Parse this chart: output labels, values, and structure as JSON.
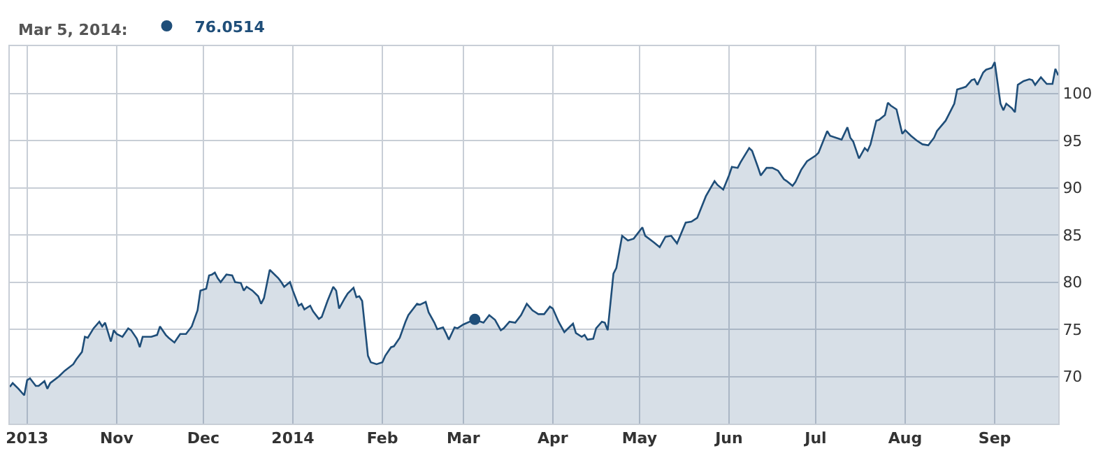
{
  "chart_data": {
    "type": "area",
    "annotations": [
      "Mar 5, 2014:"
    ],
    "legend": "top left",
    "xlim": [
      "2013-09-25",
      "2014-09-23"
    ],
    "xticks": [
      {
        "value": "2013-10-01",
        "label": "2013"
      },
      {
        "value": "2013-11-01",
        "label": "Nov"
      },
      {
        "value": "2013-12-01",
        "label": "Dec"
      },
      {
        "value": "2014-01-01",
        "label": "2014"
      },
      {
        "value": "2014-02-01",
        "label": "Feb"
      },
      {
        "value": "2014-03-01",
        "label": "Mar"
      },
      {
        "value": "2014-04-01",
        "label": "Apr"
      },
      {
        "value": "2014-05-01",
        "label": "May"
      },
      {
        "value": "2014-06-01",
        "label": "Jun"
      },
      {
        "value": "2014-07-01",
        "label": "Jul"
      },
      {
        "value": "2014-08-01",
        "label": "Aug"
      },
      {
        "value": "2014-09-01",
        "label": "Sep"
      }
    ],
    "ylim": [
      65,
      105
    ],
    "yticks": [
      70,
      75,
      80,
      85,
      90,
      95,
      100
    ],
    "grid": true,
    "series": [
      {
        "color": "#1f4e79",
        "x": [
          "2013-09-25",
          "2013-09-26",
          "2013-09-28",
          "2013-09-30",
          "2013-10-01",
          "2013-10-02",
          "2013-10-04",
          "2013-10-05",
          "2013-10-07",
          "2013-10-08",
          "2013-10-09",
          "2013-10-12",
          "2013-10-14",
          "2013-10-17",
          "2013-10-18",
          "2013-10-20",
          "2013-10-21",
          "2013-10-22",
          "2013-10-24",
          "2013-10-26",
          "2013-10-27",
          "2013-10-28",
          "2013-10-30",
          "2013-10-31",
          "2013-11-01",
          "2013-11-03",
          "2013-11-05",
          "2013-11-06",
          "2013-11-08",
          "2013-11-09",
          "2013-11-10",
          "2013-11-13",
          "2013-11-15",
          "2013-11-16",
          "2013-11-18",
          "2013-11-19",
          "2013-11-21",
          "2013-11-23",
          "2013-11-25",
          "2013-11-27",
          "2013-11-29",
          "2013-11-30",
          "2013-12-02",
          "2013-12-03",
          "2013-12-04",
          "2013-12-05",
          "2013-12-06",
          "2013-12-07",
          "2013-12-09",
          "2013-12-11",
          "2013-12-12",
          "2013-12-14",
          "2013-12-15",
          "2013-12-16",
          "2013-12-18",
          "2013-12-20",
          "2013-12-21",
          "2013-12-22",
          "2013-12-24",
          "2013-12-25",
          "2013-12-27",
          "2013-12-28",
          "2013-12-29",
          "2013-12-31",
          "2014-01-01",
          "2014-01-03",
          "2014-01-04",
          "2014-01-05",
          "2014-01-07",
          "2014-01-08",
          "2014-01-10",
          "2014-01-11",
          "2014-01-13",
          "2014-01-15",
          "2014-01-16",
          "2014-01-17",
          "2014-01-19",
          "2014-01-20",
          "2014-01-22",
          "2014-01-23",
          "2014-01-24",
          "2014-01-25",
          "2014-01-27",
          "2014-01-28",
          "2014-01-30",
          "2014-02-01",
          "2014-02-02",
          "2014-02-04",
          "2014-02-05",
          "2014-02-07",
          "2014-02-09",
          "2014-02-10",
          "2014-02-13",
          "2014-02-14",
          "2014-02-16",
          "2014-02-17",
          "2014-02-19",
          "2014-02-20",
          "2014-02-22",
          "2014-02-23",
          "2014-02-24",
          "2014-02-26",
          "2014-02-27",
          "2014-03-01",
          "2014-03-05",
          "2014-03-06",
          "2014-03-08",
          "2014-03-10",
          "2014-03-12",
          "2014-03-14",
          "2014-03-15",
          "2014-03-17",
          "2014-03-19",
          "2014-03-21",
          "2014-03-23",
          "2014-03-25",
          "2014-03-27",
          "2014-03-29",
          "2014-03-31",
          "2014-04-01",
          "2014-04-03",
          "2014-04-05",
          "2014-04-08",
          "2014-04-09",
          "2014-04-11",
          "2014-04-12",
          "2014-04-13",
          "2014-04-15",
          "2014-04-16",
          "2014-04-18",
          "2014-04-19",
          "2014-04-20",
          "2014-04-22",
          "2014-04-23",
          "2014-04-25",
          "2014-04-27",
          "2014-04-29",
          "2014-05-02",
          "2014-05-03",
          "2014-05-06",
          "2014-05-08",
          "2014-05-10",
          "2014-05-12",
          "2014-05-14",
          "2014-05-17",
          "2014-05-19",
          "2014-05-21",
          "2014-05-24",
          "2014-05-27",
          "2014-05-28",
          "2014-05-30",
          "2014-06-01",
          "2014-06-02",
          "2014-06-04",
          "2014-06-05",
          "2014-06-08",
          "2014-06-09",
          "2014-06-11",
          "2014-06-12",
          "2014-06-14",
          "2014-06-16",
          "2014-06-18",
          "2014-06-20",
          "2014-06-21",
          "2014-06-23",
          "2014-06-24",
          "2014-06-26",
          "2014-06-28",
          "2014-07-01",
          "2014-07-02",
          "2014-07-05",
          "2014-07-06",
          "2014-07-08",
          "2014-07-10",
          "2014-07-12",
          "2014-07-13",
          "2014-07-14",
          "2014-07-16",
          "2014-07-18",
          "2014-07-19",
          "2014-07-20",
          "2014-07-22",
          "2014-07-23",
          "2014-07-25",
          "2014-07-26",
          "2014-07-27",
          "2014-07-29",
          "2014-07-31",
          "2014-08-01",
          "2014-08-03",
          "2014-08-05",
          "2014-08-07",
          "2014-08-09",
          "2014-08-11",
          "2014-08-12",
          "2014-08-15",
          "2014-08-16",
          "2014-08-18",
          "2014-08-19",
          "2014-08-21",
          "2014-08-22",
          "2014-08-24",
          "2014-08-25",
          "2014-08-26",
          "2014-08-28",
          "2014-08-29",
          "2014-08-31",
          "2014-09-01",
          "2014-09-03",
          "2014-09-04",
          "2014-09-05",
          "2014-09-07",
          "2014-09-08",
          "2014-09-09",
          "2014-09-11",
          "2014-09-13",
          "2014-09-14",
          "2014-09-15",
          "2014-09-17",
          "2014-09-19",
          "2014-09-21",
          "2014-09-22",
          "2014-09-23"
        ],
        "values": [
          68.9,
          69.3,
          68.7,
          68.0,
          69.6,
          69.8,
          69.0,
          69.0,
          69.5,
          68.7,
          69.3,
          70.0,
          70.6,
          71.3,
          71.8,
          72.6,
          74.2,
          74.1,
          75.1,
          75.8,
          75.3,
          75.7,
          73.7,
          74.9,
          74.5,
          74.2,
          75.1,
          74.9,
          74.0,
          73.1,
          74.2,
          74.2,
          74.4,
          75.3,
          74.4,
          74.1,
          73.6,
          74.5,
          74.5,
          75.3,
          77.0,
          79.1,
          79.3,
          80.7,
          80.8,
          81.0,
          80.4,
          80.0,
          80.8,
          80.7,
          80.0,
          79.9,
          79.1,
          79.5,
          79.1,
          78.5,
          77.7,
          78.3,
          81.3,
          81.0,
          80.4,
          80.0,
          79.5,
          80.0,
          79.1,
          77.5,
          77.7,
          77.1,
          77.5,
          76.9,
          76.1,
          76.3,
          78.0,
          79.5,
          79.1,
          77.2,
          78.3,
          78.8,
          79.4,
          78.4,
          78.5,
          78.0,
          72.2,
          71.5,
          71.3,
          71.5,
          72.2,
          73.1,
          73.2,
          74.1,
          75.8,
          76.5,
          77.7,
          77.6,
          77.9,
          76.8,
          75.7,
          75.0,
          75.2,
          74.6,
          73.9,
          75.2,
          75.1,
          75.5,
          76.05,
          75.9,
          75.7,
          76.5,
          76.0,
          74.9,
          75.1,
          75.8,
          75.7,
          76.5,
          77.7,
          77.0,
          76.6,
          76.6,
          77.4,
          77.2,
          75.8,
          74.7,
          75.6,
          74.6,
          74.2,
          74.4,
          73.9,
          74.0,
          75.1,
          75.8,
          75.7,
          74.9,
          80.9,
          81.5,
          84.9,
          84.4,
          84.6,
          85.8,
          84.9,
          84.2,
          83.7,
          84.8,
          84.9,
          84.1,
          86.3,
          86.4,
          86.8,
          89.1,
          90.7,
          90.3,
          89.8,
          91.3,
          92.2,
          92.1,
          92.7,
          94.2,
          93.9,
          92.2,
          91.3,
          92.1,
          92.1,
          91.8,
          90.9,
          90.7,
          90.2,
          90.6,
          91.9,
          92.8,
          93.4,
          93.7,
          96.0,
          95.5,
          95.3,
          95.1,
          96.4,
          95.3,
          94.9,
          93.1,
          94.2,
          93.9,
          94.6,
          97.1,
          97.2,
          97.7,
          99.0,
          98.7,
          98.3,
          95.7,
          96.1,
          95.5,
          95.0,
          94.6,
          94.5,
          95.3,
          96.0,
          97.1,
          97.7,
          98.9,
          100.4,
          100.6,
          100.7,
          101.4,
          101.5,
          100.9,
          102.2,
          102.5,
          102.7,
          103.3,
          98.9,
          98.2,
          98.9,
          98.4,
          98.0,
          100.9,
          101.3,
          101.5,
          101.4,
          100.9,
          101.7,
          101.0,
          101.0,
          102.6,
          101.9
        ]
      },
      {
        "type": "scatter",
        "name": "76.0514",
        "color": "#1f4e79",
        "marker": "circle",
        "x": [
          "2014-03-05"
        ],
        "values": [
          76.05
        ]
      }
    ]
  }
}
